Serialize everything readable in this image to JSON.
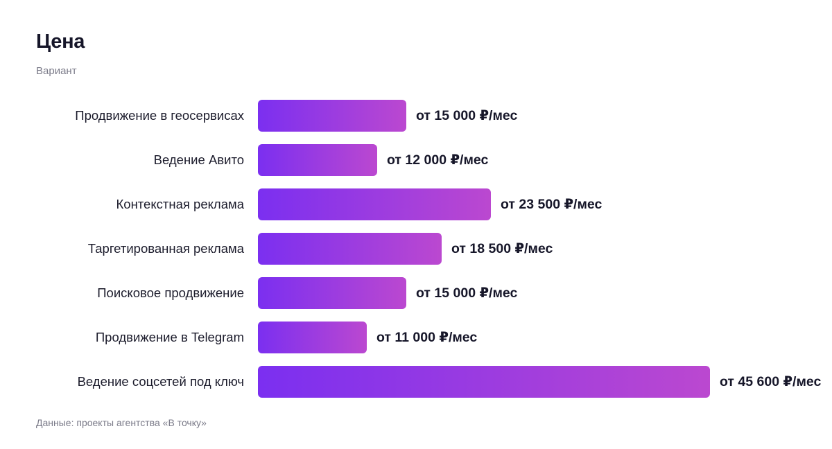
{
  "title": "Цена",
  "subtitle": "Вариант",
  "footnote": "Данные: проекты агентства «В точку»",
  "chart_data": {
    "type": "bar",
    "orientation": "horizontal",
    "title": "Цена",
    "subtitle": "Вариант",
    "xlabel": "",
    "ylabel": "",
    "xlim": [
      0,
      45600
    ],
    "grid": false,
    "categories": [
      "Продвижение в геосервисах",
      "Ведение Авито",
      "Контекстная реклама",
      "Таргетированная реклама",
      "Поисковое продвижение",
      "Продвижение в Telegram",
      "Ведение соцсетей под ключ"
    ],
    "values": [
      15000,
      12000,
      23500,
      18500,
      15000,
      11000,
      45600
    ],
    "value_labels": [
      "от 15 000 ₽/мес",
      "от 12 000 ₽/мес",
      "от 23 500 ₽/мес",
      "от 18 500 ₽/мес",
      "от 15 000 ₽/мес",
      "от 11 000 ₽/мес",
      "от 45 600 ₽/мес"
    ],
    "colors": {
      "bar_start": "#7b2ff0",
      "bar_end": "#bb48d0",
      "text": "#161629",
      "muted": "#7a7a88"
    }
  }
}
